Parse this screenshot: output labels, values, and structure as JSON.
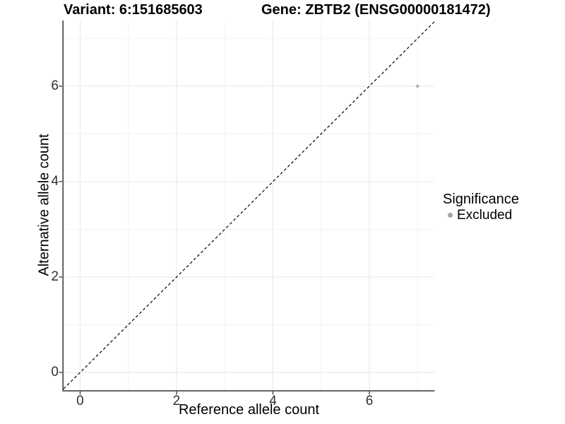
{
  "chart_data": {
    "type": "scatter",
    "title_left": "Variant: 6:151685603",
    "title_right": "Gene: ZBTB2 (ENSG00000181472)",
    "xlabel": "Reference allele count",
    "ylabel": "Alternative allele count",
    "xlim": [
      -0.344,
      7.354
    ],
    "ylim": [
      -0.376,
      7.376
    ],
    "x_major_ticks": [
      0,
      2,
      4,
      6
    ],
    "y_major_ticks": [
      0,
      2,
      4,
      6
    ],
    "x_minor_gridlines": [
      1,
      3,
      5,
      7
    ],
    "y_minor_gridlines": [
      1,
      3,
      5,
      7
    ],
    "grid": "on",
    "series": [
      {
        "name": "Excluded",
        "points": [
          {
            "x": 7,
            "y": 6
          }
        ]
      }
    ],
    "reference_line": {
      "kind": "abline",
      "slope": 1,
      "intercept": 0,
      "style": "dashed"
    },
    "legend": {
      "title": "Significance",
      "position": "right",
      "items": [
        {
          "label": "Excluded",
          "color": "#a6a6a6"
        }
      ]
    }
  },
  "colors": {
    "background": "#ffffff",
    "point": "#b2b2b2",
    "legend_dot": "#a6a6a6",
    "grid_major": "#e7e7e7",
    "grid_minor": "#f2f2f2",
    "axis_line": "#404040",
    "tick_mark": "#404040",
    "tick_text": "#303030",
    "abline": "#000000"
  }
}
